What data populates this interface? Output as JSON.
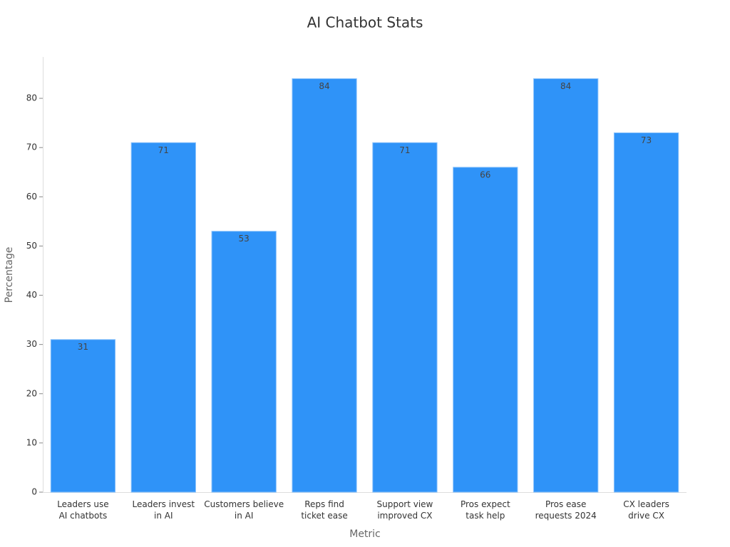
{
  "chart_data": {
    "type": "bar",
    "title": "AI Chatbot Stats",
    "x_label": "Metric",
    "y_label": "Percentage",
    "categories": [
      "Leaders use\nAI chatbots",
      "Leaders invest\nin AI",
      "Customers believe\nin AI",
      "Reps find\nticket ease",
      "Support view\nimproved CX",
      "Pros expect\ntask help",
      "Pros ease\nrequests 2024",
      "CX leaders\ndrive CX"
    ],
    "values": [
      31,
      71,
      53,
      84,
      71,
      66,
      84,
      73
    ],
    "color": "#2f93f8",
    "ylim": [
      0,
      88.4
    ],
    "yticks": [
      0,
      10,
      20,
      30,
      40,
      50,
      60,
      70,
      80
    ],
    "grid": false
  }
}
